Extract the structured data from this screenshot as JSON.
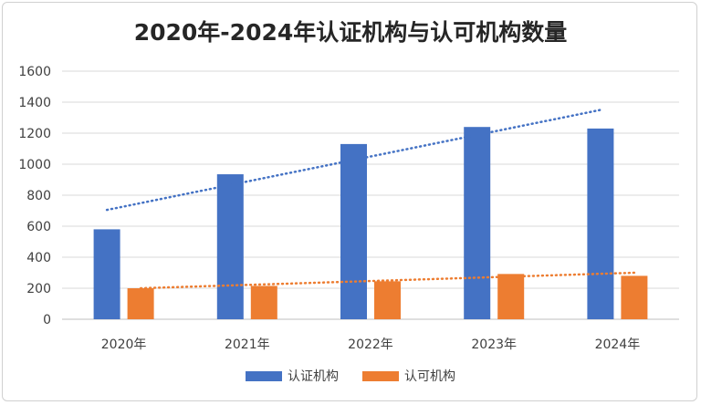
{
  "chart_data": {
    "type": "bar",
    "title": "2020年-2024年认证机构与认可机构数量",
    "categories": [
      "2020年",
      "2021年",
      "2022年",
      "2023年",
      "2024年"
    ],
    "series": [
      {
        "name": "认证机构",
        "values": [
          580,
          935,
          1130,
          1240,
          1230
        ],
        "color": "#4472C4"
      },
      {
        "name": "认可机构",
        "values": [
          200,
          215,
          245,
          292,
          280
        ],
        "color": "#ED7D31"
      }
    ],
    "trendlines": [
      {
        "series": "认证机构",
        "type": "linear",
        "start": 705,
        "end": 1350,
        "color": "#4472C4"
      },
      {
        "series": "认可机构",
        "type": "linear",
        "start": 200,
        "end": 300,
        "color": "#ED7D31"
      }
    ],
    "ylim": [
      0,
      1600
    ],
    "yticks": [
      0,
      200,
      400,
      600,
      800,
      1000,
      1200,
      1400,
      1600
    ],
    "grid": true,
    "legend": "bottom"
  }
}
